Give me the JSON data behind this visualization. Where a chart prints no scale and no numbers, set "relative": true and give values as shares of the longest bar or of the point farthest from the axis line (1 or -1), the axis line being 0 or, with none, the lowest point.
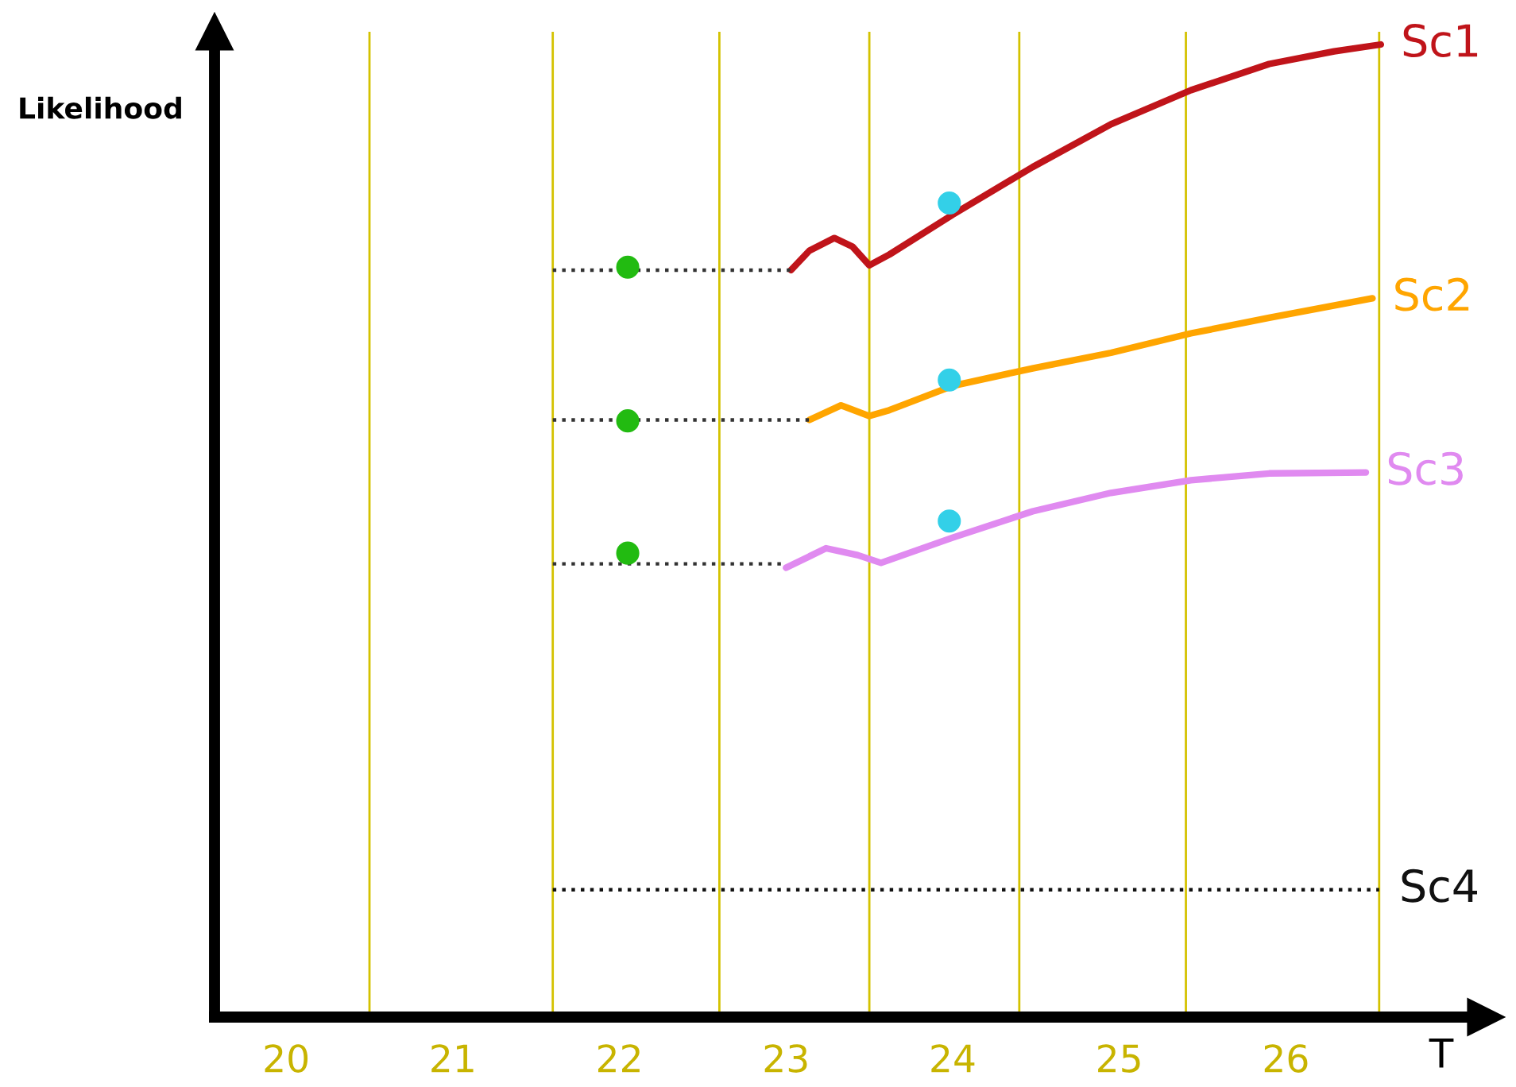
{
  "chart_data": {
    "type": "line",
    "relative": true,
    "ylabel": "Likelihood",
    "xlabel": "T",
    "xlim": [
      19.57,
      27.2
    ],
    "xticks": [
      20,
      21,
      22,
      23,
      24,
      25,
      26
    ],
    "tick_labels": "x",
    "grid": false,
    "legend": false,
    "ref_lines": [
      {
        "axis": "x",
        "value": 20.5,
        "color": "#d4c200"
      },
      {
        "axis": "x",
        "value": 21.6,
        "color": "#d4c200"
      },
      {
        "axis": "x",
        "value": 22.6,
        "color": "#d4c200"
      },
      {
        "axis": "x",
        "value": 23.5,
        "color": "#d4c200"
      },
      {
        "axis": "x",
        "value": 24.4,
        "color": "#d4c200"
      },
      {
        "axis": "x",
        "value": 25.4,
        "color": "#d4c200"
      },
      {
        "axis": "x",
        "value": 26.56,
        "color": "#d4c200"
      }
    ],
    "series": [
      {
        "name": "Sc1",
        "color": "#c0141a",
        "x": [
          23.03,
          23.14,
          23.29,
          23.4,
          23.5,
          23.62,
          24.0,
          24.48,
          24.95,
          25.43,
          25.9,
          26.29,
          26.57
        ],
        "values": [
          0.768,
          0.788,
          0.801,
          0.792,
          0.773,
          0.784,
          0.825,
          0.874,
          0.918,
          0.953,
          0.98,
          0.993,
          1.0
        ]
      },
      {
        "name": "Sc2",
        "color": "#ffa500",
        "x": [
          23.14,
          23.33,
          23.5,
          23.62,
          24.0,
          24.48,
          24.95,
          25.43,
          25.9,
          26.52
        ],
        "values": [
          0.614,
          0.629,
          0.618,
          0.624,
          0.649,
          0.667,
          0.683,
          0.703,
          0.719,
          0.739
        ]
      },
      {
        "name": "Sc3",
        "color": "#e08af0",
        "x": [
          23.0,
          23.24,
          23.43,
          23.57,
          24.0,
          24.48,
          24.95,
          25.43,
          25.9,
          26.48
        ],
        "values": [
          0.462,
          0.482,
          0.475,
          0.467,
          0.493,
          0.52,
          0.539,
          0.552,
          0.559,
          0.56
        ]
      },
      {
        "name": "Sc4",
        "color": "#111111",
        "line_style": "dotted",
        "x": [
          21.6,
          26.56
        ],
        "values": [
          0.131,
          0.131
        ]
      },
      {
        "color": "#333333",
        "line_style": "dotted",
        "x": [
          21.6,
          23.03
        ],
        "values": [
          0.768,
          0.768
        ]
      },
      {
        "color": "#333333",
        "line_style": "dotted",
        "x": [
          21.6,
          23.14
        ],
        "values": [
          0.614,
          0.614
        ]
      },
      {
        "color": "#333333",
        "line_style": "dotted",
        "x": [
          21.6,
          23.0
        ],
        "values": [
          0.466,
          0.466
        ]
      },
      {
        "type": "scatter",
        "marker": "circle",
        "color": "#22bb11",
        "x": [
          22.05,
          22.05,
          22.05
        ],
        "values": [
          0.771,
          0.613,
          0.477
        ]
      },
      {
        "type": "scatter",
        "marker": "circle",
        "color": "#33d0e8",
        "x": [
          23.98,
          23.98,
          23.98
        ],
        "values": [
          0.837,
          0.655,
          0.51
        ]
      }
    ]
  }
}
